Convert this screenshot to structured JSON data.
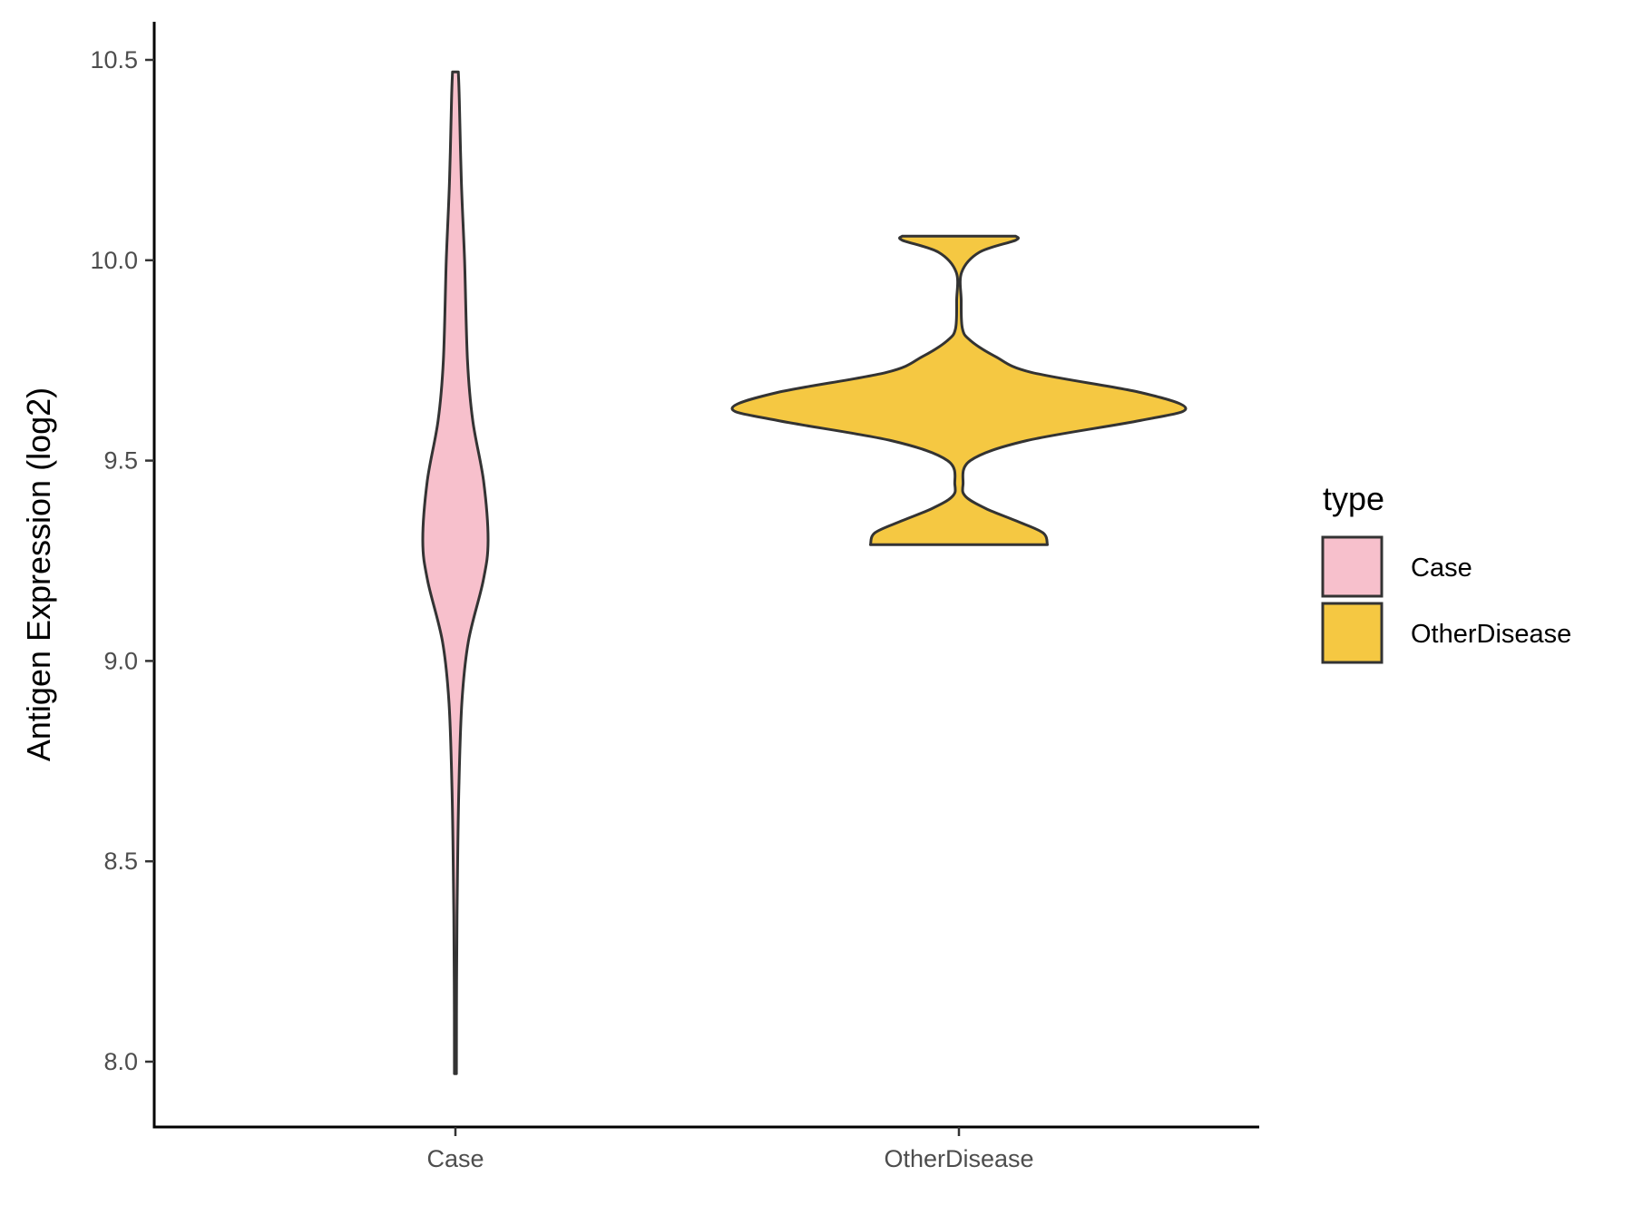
{
  "chart_data": {
    "type": "violin",
    "title": "",
    "xlabel": "",
    "ylabel": "Antigen Expression (log2)",
    "ylim": [
      7.85,
      10.6
    ],
    "yticks": [
      "8.0",
      "8.5",
      "9.0",
      "9.5",
      "10.0",
      "10.5"
    ],
    "ytick_values": [
      8.0,
      8.5,
      9.0,
      9.5,
      10.0,
      10.5
    ],
    "categories": [
      "Case",
      "OtherDisease"
    ],
    "legend": {
      "title": "type",
      "position": "right",
      "entries": [
        "Case",
        "OtherDisease"
      ]
    },
    "grid": false,
    "series": [
      {
        "name": "Case",
        "color": "#F7C0CC",
        "min": 7.97,
        "max": 10.47,
        "density": [
          [
            7.97,
            0.03
          ],
          [
            8.2,
            0.035
          ],
          [
            8.45,
            0.06
          ],
          [
            8.7,
            0.11
          ],
          [
            8.9,
            0.2
          ],
          [
            9.05,
            0.4
          ],
          [
            9.2,
            0.85
          ],
          [
            9.3,
            1.0
          ],
          [
            9.45,
            0.86
          ],
          [
            9.6,
            0.53
          ],
          [
            9.75,
            0.37
          ],
          [
            10.0,
            0.28
          ],
          [
            10.2,
            0.18
          ],
          [
            10.4,
            0.12
          ],
          [
            10.47,
            0.09
          ]
        ]
      },
      {
        "name": "OtherDisease",
        "color": "#F5C842",
        "min": 9.29,
        "max": 10.06,
        "density": [
          [
            9.29,
            0.39
          ],
          [
            9.32,
            0.37
          ],
          [
            9.35,
            0.25
          ],
          [
            9.38,
            0.12
          ],
          [
            9.41,
            0.03
          ],
          [
            9.44,
            0.018
          ],
          [
            9.5,
            0.05
          ],
          [
            9.55,
            0.3
          ],
          [
            9.6,
            0.8
          ],
          [
            9.63,
            1.0
          ],
          [
            9.67,
            0.8
          ],
          [
            9.72,
            0.32
          ],
          [
            9.76,
            0.16
          ],
          [
            9.8,
            0.05
          ],
          [
            9.83,
            0.015
          ],
          [
            9.9,
            0.01
          ],
          [
            9.97,
            0.012
          ],
          [
            10.02,
            0.09
          ],
          [
            10.05,
            0.25
          ],
          [
            10.06,
            0.25
          ]
        ]
      }
    ]
  }
}
